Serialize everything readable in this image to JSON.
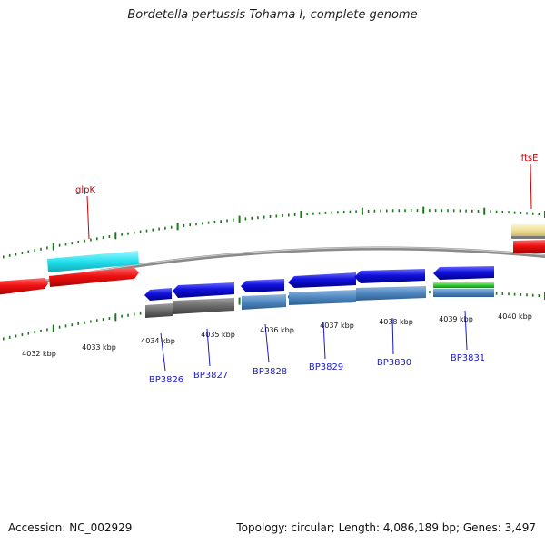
{
  "title": "Bordetella pertussis Tohama I, complete genome",
  "footer": {
    "accession": "Accession: NC_002929",
    "summary": "Topology: circular; Length: 4,086,189 bp; Genes: 3,497"
  },
  "scale_labels": [
    "4032 kbp",
    "4033 kbp",
    "4034 kbp",
    "4035 kbp",
    "4036 kbp",
    "4037 kbp",
    "4038 kbp",
    "4039 kbp",
    "4040 kbp"
  ],
  "gene_labels": {
    "glpK": "glpK",
    "ftsE": "ftsE",
    "BP3826": "BP3826",
    "BP3827": "BP3827",
    "BP3828": "BP3828",
    "BP3829": "BP3829",
    "BP3830": "BP3830",
    "BP3831": "BP3831"
  },
  "colors": {
    "named_gene_label": "#cc0000",
    "locus_label": "#1a1acc",
    "tick": "#1a7a1a",
    "backbone": "#8a8a8a",
    "cds_forward": "#ee1111",
    "cds_reverse": "#1111dd",
    "feature_cyan": "#22e0ee",
    "feature_steelblue": "#4f87c0",
    "feature_gray": "#6a6a6a",
    "feature_green": "#33cc33",
    "feature_khaki": "#eee099"
  }
}
